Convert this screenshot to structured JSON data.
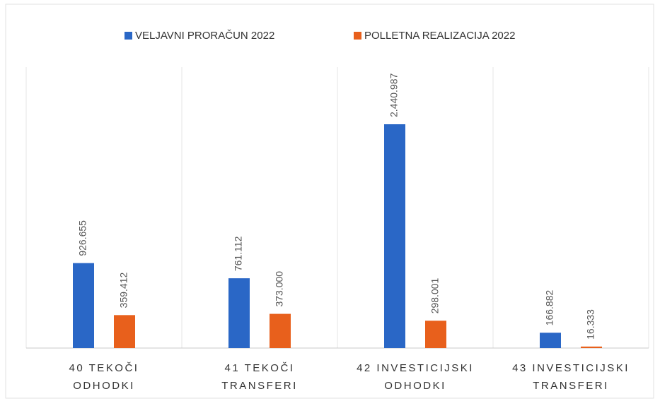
{
  "chart_data": {
    "type": "bar",
    "categories": [
      [
        "40 TEKOČI",
        "ODHODKI"
      ],
      [
        "41 TEKOČI",
        "TRANSFERI"
      ],
      [
        "42 INVESTICIJSKI",
        "ODHODKI"
      ],
      [
        "43 INVESTICIJSKI",
        "TRANSFERI"
      ]
    ],
    "series": [
      {
        "name": "VELJAVNI PRORAČUN 2022",
        "color": "#2a67c6",
        "values": [
          926655,
          761112,
          2440987,
          166882
        ],
        "value_labels": [
          "926.655",
          "761.112",
          "2.440.987",
          "166.882"
        ]
      },
      {
        "name": "POLLETNA REALIZACIJA 2022",
        "color": "#e8601c",
        "values": [
          359412,
          373000,
          298001,
          16333
        ],
        "value_labels": [
          "359.412",
          "373.000",
          "298.001",
          "16.333"
        ]
      }
    ],
    "legend": "top"
  }
}
